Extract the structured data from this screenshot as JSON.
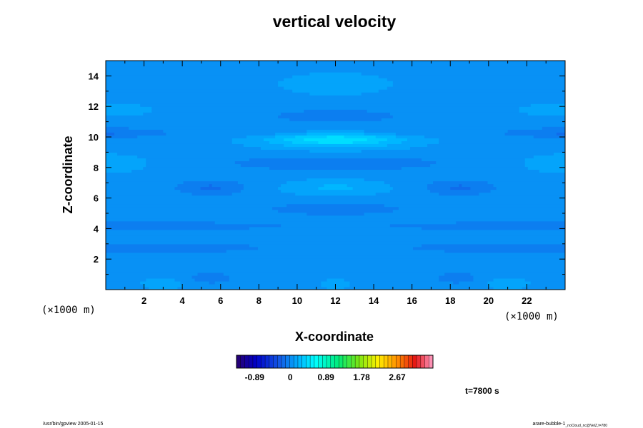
{
  "chart_data": {
    "type": "heatmap",
    "title": "vertical velocity",
    "xlabel": "X-coordinate",
    "ylabel": "Z-coordinate",
    "x_unit_left": "(×1000 m)",
    "x_unit_right": "(×1000 m)",
    "xlim": [
      0,
      24
    ],
    "ylim": [
      0,
      15
    ],
    "x_ticks": [
      2,
      4,
      6,
      8,
      10,
      12,
      14,
      16,
      18,
      20,
      22
    ],
    "y_ticks": [
      2,
      4,
      6,
      8,
      10,
      12,
      14
    ],
    "colorbar": {
      "tick_labels": [
        "-0.89",
        "0",
        "0.89",
        "1.78",
        "2.67"
      ],
      "range": [
        -1.34,
        3.56
      ],
      "levels": 48
    },
    "field_range_approx": [
      -0.35,
      0.55
    ],
    "time_label": "t=7800 s"
  },
  "footer": {
    "left": "/usr/bin/gpview 2005-01-15",
    "right_main": "arare-bubble-1",
    "right_sub": "_noCloud_nc@VelZ,t=780"
  },
  "colors": {
    "low": "#1a5fd6",
    "mid": "#1e90ff",
    "high": "#00cfff",
    "peak": "#00ffff"
  }
}
